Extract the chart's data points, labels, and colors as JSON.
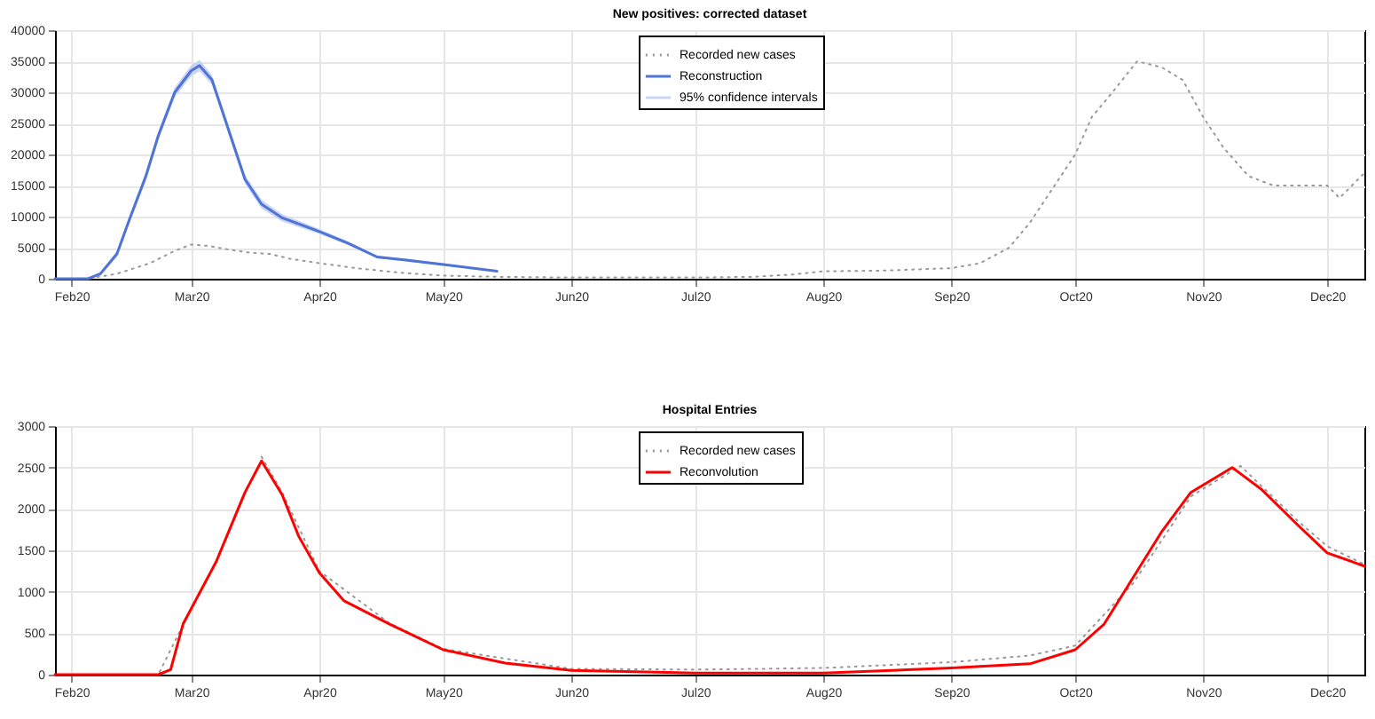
{
  "chart_data": [
    {
      "type": "line",
      "title": "New positives: corrected dataset",
      "grid": true,
      "legend": "top",
      "xlim": [
        "2020-01-28",
        "2020-12-10"
      ],
      "xticks": [
        {
          "value": "2020-02-01",
          "label": "Feb20"
        },
        {
          "value": "2020-03-01",
          "label": "Mar20"
        },
        {
          "value": "2020-04-01",
          "label": "Apr20"
        },
        {
          "value": "2020-05-01",
          "label": "May20"
        },
        {
          "value": "2020-06-01",
          "label": "Jun20"
        },
        {
          "value": "2020-07-01",
          "label": "Jul20"
        },
        {
          "value": "2020-08-01",
          "label": "Aug20"
        },
        {
          "value": "2020-09-01",
          "label": "Sep20"
        },
        {
          "value": "2020-10-01",
          "label": "Oct20"
        },
        {
          "value": "2020-11-01",
          "label": "Nov20"
        },
        {
          "value": "2020-12-01",
          "label": "Dec20"
        }
      ],
      "ylim": [
        0,
        40000
      ],
      "yticks": [
        0,
        5000,
        10000,
        15000,
        20000,
        25000,
        30000,
        35000,
        40000
      ],
      "series": [
        {
          "name": "Recorded new cases",
          "line_style": "dotted",
          "color": "#999999",
          "x": [
            "2020-01-28",
            "2020-02-05",
            "2020-02-12",
            "2020-02-20",
            "2020-02-26",
            "2020-03-01",
            "2020-03-05",
            "2020-03-10",
            "2020-03-15",
            "2020-03-20",
            "2020-03-25",
            "2020-04-01",
            "2020-04-10",
            "2020-04-20",
            "2020-05-01",
            "2020-05-15",
            "2020-06-01",
            "2020-07-01",
            "2020-07-15",
            "2020-07-25",
            "2020-08-01",
            "2020-08-15",
            "2020-09-01",
            "2020-09-08",
            "2020-09-15",
            "2020-09-20",
            "2020-09-25",
            "2020-10-01",
            "2020-10-05",
            "2020-10-10",
            "2020-10-16",
            "2020-10-22",
            "2020-10-27",
            "2020-11-01",
            "2020-11-06",
            "2020-11-12",
            "2020-11-18",
            "2020-11-25",
            "2020-12-01",
            "2020-12-04",
            "2020-12-10"
          ],
          "values": [
            0,
            0,
            800,
            2500,
            4500,
            5500,
            5300,
            4700,
            4200,
            4000,
            3200,
            2500,
            1700,
            1000,
            500,
            300,
            200,
            200,
            300,
            700,
            1200,
            1300,
            1700,
            2500,
            5000,
            9000,
            14000,
            20000,
            26000,
            30000,
            35000,
            34000,
            32000,
            26000,
            21000,
            16500,
            15000,
            15000,
            15000,
            13000,
            17000
          ]
        },
        {
          "name": "Reconstruction",
          "line_style": "solid",
          "color": "#4f73d6",
          "x": [
            "2020-01-28",
            "2020-02-05",
            "2020-02-08",
            "2020-02-12",
            "2020-02-15",
            "2020-02-19",
            "2020-02-22",
            "2020-02-26",
            "2020-03-01",
            "2020-03-03",
            "2020-03-06",
            "2020-03-10",
            "2020-03-14",
            "2020-03-18",
            "2020-03-23",
            "2020-04-01",
            "2020-04-08",
            "2020-04-15",
            "2020-04-22",
            "2020-05-01",
            "2020-05-14"
          ],
          "values": [
            0,
            0,
            800,
            4000,
            9500,
            16500,
            23000,
            30000,
            33500,
            34300,
            32000,
            24000,
            16000,
            12000,
            9800,
            7600,
            5700,
            3500,
            3000,
            2300,
            1200
          ],
          "lower": [
            0,
            0,
            500,
            3500,
            8900,
            15800,
            22300,
            29200,
            32600,
            33400,
            31200,
            23300,
            15300,
            11300,
            9200,
            7200,
            5400,
            3300,
            2800,
            2100,
            1100
          ],
          "upper": [
            0,
            100,
            1100,
            4500,
            10100,
            17200,
            23700,
            30800,
            34400,
            35200,
            32800,
            24700,
            16700,
            12700,
            10400,
            8000,
            6000,
            3700,
            3200,
            2500,
            1300
          ]
        }
      ],
      "annotations": [
        "95% confidence intervals"
      ]
    },
    {
      "type": "line",
      "title": "Hospital Entries",
      "grid": true,
      "legend": "top",
      "xlim": [
        "2020-01-28",
        "2020-12-10"
      ],
      "xticks": [
        {
          "value": "2020-02-01",
          "label": "Feb20"
        },
        {
          "value": "2020-03-01",
          "label": "Mar20"
        },
        {
          "value": "2020-04-01",
          "label": "Apr20"
        },
        {
          "value": "2020-05-01",
          "label": "May20"
        },
        {
          "value": "2020-06-01",
          "label": "Jun20"
        },
        {
          "value": "2020-07-01",
          "label": "Jul20"
        },
        {
          "value": "2020-08-01",
          "label": "Aug20"
        },
        {
          "value": "2020-09-01",
          "label": "Sep20"
        },
        {
          "value": "2020-10-01",
          "label": "Oct20"
        },
        {
          "value": "2020-11-01",
          "label": "Nov20"
        },
        {
          "value": "2020-12-01",
          "label": "Dec20"
        }
      ],
      "ylim": [
        0,
        3000
      ],
      "yticks": [
        0,
        500,
        1000,
        1500,
        2000,
        2500,
        3000
      ],
      "series": [
        {
          "name": "Recorded new cases",
          "line_style": "dotted",
          "color": "#999999",
          "x": [
            "2020-01-28",
            "2020-02-22",
            "2020-02-28",
            "2020-03-07",
            "2020-03-14",
            "2020-03-18",
            "2020-03-23",
            "2020-04-01",
            "2020-04-18",
            "2020-05-01",
            "2020-06-01",
            "2020-07-01",
            "2020-08-01",
            "2020-09-01",
            "2020-09-20",
            "2020-10-01",
            "2020-10-15",
            "2020-10-29",
            "2020-11-10",
            "2020-11-24",
            "2020-12-01",
            "2020-12-10"
          ],
          "values": [
            0,
            0,
            600,
            null,
            null,
            2630,
            2200,
            1250,
            620,
            310,
            70,
            60,
            80,
            150,
            230,
            350,
            1100,
            2150,
            2520,
            1850,
            1550,
            1330
          ]
        },
        {
          "name": "Reconvolution",
          "line_style": "solid",
          "color": "#ff0000",
          "x": [
            "2020-01-28",
            "2020-02-22",
            "2020-02-25",
            "2020-02-28",
            "2020-03-07",
            "2020-03-14",
            "2020-03-18",
            "2020-03-23",
            "2020-03-27",
            "2020-04-01",
            "2020-04-07",
            "2020-04-18",
            "2020-05-01",
            "2020-05-16",
            "2020-06-01",
            "2020-07-01",
            "2020-08-01",
            "2020-09-01",
            "2020-09-20",
            "2020-10-01",
            "2020-10-08",
            "2020-10-15",
            "2020-10-22",
            "2020-10-29",
            "2020-11-08",
            "2020-11-15",
            "2020-11-24",
            "2020-12-01",
            "2020-12-10"
          ],
          "values": [
            0,
            0,
            60,
            610,
            1360,
            2200,
            2580,
            2170,
            1670,
            1230,
            890,
            610,
            300,
            140,
            50,
            20,
            20,
            80,
            130,
            300,
            610,
            1170,
            1730,
            2200,
            2500,
            2240,
            1800,
            1470,
            1310
          ]
        }
      ]
    }
  ]
}
